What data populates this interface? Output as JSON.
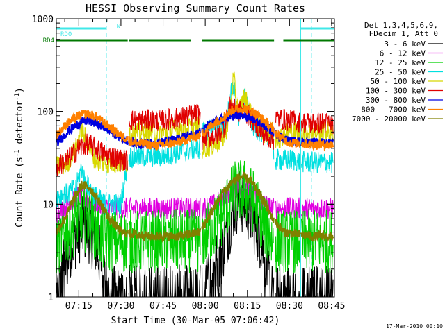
{
  "chart_data": {
    "type": "line",
    "title": "HESSI Observing Summary Count Rates",
    "xlabel": "Start Time (30-Mar-05 07:06:42)",
    "ylabel_main": "Count Rate (s",
    "ylabel_sup1": "-1",
    "ylabel_mid": " detector",
    "ylabel_sup2": "-1",
    "ylabel_end": ")",
    "y_log": true,
    "ylim": [
      1,
      1000
    ],
    "xlim": [
      427,
      526
    ],
    "ytick_labels": [
      "1",
      "10",
      "100",
      "1000"
    ],
    "xticks": [
      {
        "m": 435,
        "label": "07:15"
      },
      {
        "m": 450,
        "label": "07:30"
      },
      {
        "m": 465,
        "label": "07:45"
      },
      {
        "m": 480,
        "label": "08:00"
      },
      {
        "m": 495,
        "label": "08:15"
      },
      {
        "m": 510,
        "label": "08:30"
      },
      {
        "m": 525,
        "label": "08:45"
      }
    ],
    "legend_header": [
      "Det 1,3,4,5,6,9,",
      "FDecim 1, Att 0"
    ],
    "legend_position": "right",
    "night_boundaries": [
      444.8,
      517.8
    ],
    "saa_boundaries": [
      427,
      514
    ],
    "flags": [
      {
        "label": "RD0",
        "color": "#40e8e8",
        "segments": [
          [
            427,
            444.8
          ],
          [
            513.8,
            526
          ]
        ],
        "n_at": 446.5
      },
      {
        "label": "RD4",
        "color": "#007800",
        "segments": [
          [
            427,
            452.4
          ],
          [
            452.8,
            475
          ],
          [
            478.8,
            504.5
          ],
          [
            507.8,
            526
          ]
        ]
      }
    ],
    "gaps": [
      [
        452.4,
        452.8
      ],
      [
        478.3,
        478.8
      ],
      [
        504.5,
        505
      ],
      [
        513.8,
        514.2
      ]
    ],
    "series": [
      {
        "name": "3 - 6 keV",
        "color": "#000000",
        "points": [
          [
            427,
            1
          ],
          [
            432,
            3.5
          ],
          [
            436,
            5.5
          ],
          [
            439,
            5
          ],
          [
            443,
            2.5
          ],
          [
            446,
            1
          ],
          [
            452,
            1
          ],
          [
            465,
            1
          ],
          [
            478,
            1
          ],
          [
            486,
            3
          ],
          [
            490,
            9
          ],
          [
            492,
            11
          ],
          [
            494,
            10
          ],
          [
            496,
            8
          ],
          [
            500,
            4
          ],
          [
            504,
            1
          ],
          [
            510,
            1
          ],
          [
            518,
            1
          ]
        ]
      },
      {
        "name": "6 - 12 keV",
        "color": "#e000e0",
        "points": [
          [
            427,
            8
          ],
          [
            431,
            10
          ],
          [
            435,
            12.5
          ],
          [
            439,
            11
          ],
          [
            444,
            9
          ],
          [
            452,
            9
          ],
          [
            465,
            9
          ],
          [
            478,
            9
          ],
          [
            484,
            10
          ],
          [
            488,
            13
          ],
          [
            491,
            15
          ],
          [
            494,
            15
          ],
          [
            497,
            13
          ],
          [
            501,
            10
          ],
          [
            504,
            9
          ],
          [
            510,
            9
          ],
          [
            518,
            9
          ]
        ]
      },
      {
        "name": "12 - 25 keV",
        "color": "#00d000",
        "points": [
          [
            427,
            3.5
          ],
          [
            431,
            5
          ],
          [
            435,
            7
          ],
          [
            439,
            6.5
          ],
          [
            444,
            4
          ],
          [
            452,
            4
          ],
          [
            465,
            4
          ],
          [
            478,
            4
          ],
          [
            484,
            6
          ],
          [
            488,
            10
          ],
          [
            491,
            14
          ],
          [
            494,
            14
          ],
          [
            497,
            11
          ],
          [
            501,
            6
          ],
          [
            504,
            4
          ],
          [
            510,
            4
          ],
          [
            518,
            4
          ]
        ]
      },
      {
        "name": "25 - 50 keV",
        "color": "#00e0e0",
        "points": [
          [
            427,
            12
          ],
          [
            431,
            13
          ],
          [
            434,
            15
          ],
          [
            436,
            25
          ],
          [
            437,
            18
          ],
          [
            440,
            13
          ],
          [
            444,
            10
          ],
          [
            450,
            10
          ],
          [
            452.6,
            32
          ],
          [
            465,
            33
          ],
          [
            477,
            40
          ],
          [
            478.2,
            40
          ],
          [
            479,
            60
          ],
          [
            484,
            65
          ],
          [
            487,
            70
          ],
          [
            490,
            200
          ],
          [
            492,
            80
          ],
          [
            494,
            140
          ],
          [
            497,
            70
          ],
          [
            500,
            60
          ],
          [
            504,
            55
          ],
          [
            504.6,
            30
          ],
          [
            510,
            30
          ],
          [
            518,
            28
          ]
        ]
      },
      {
        "name": "50 - 100 keV",
        "color": "#d8d800",
        "points": [
          [
            427,
            25
          ],
          [
            431,
            28
          ],
          [
            434,
            40
          ],
          [
            436,
            65
          ],
          [
            438,
            45
          ],
          [
            441,
            30
          ],
          [
            444,
            28
          ],
          [
            450,
            28
          ],
          [
            452.4,
            28
          ],
          [
            452.8,
            60
          ],
          [
            465,
            60
          ],
          [
            475,
            68
          ],
          [
            478,
            70
          ],
          [
            478.8,
            40
          ],
          [
            484,
            45
          ],
          [
            487,
            55
          ],
          [
            489,
            110
          ],
          [
            490,
            230
          ],
          [
            492,
            100
          ],
          [
            494,
            145
          ],
          [
            497,
            85
          ],
          [
            501,
            60
          ],
          [
            504.5,
            60
          ],
          [
            505,
            50
          ],
          [
            510,
            60
          ],
          [
            518,
            60
          ]
        ]
      },
      {
        "name": "100 - 300 keV",
        "color": "#e00000",
        "points": [
          [
            427,
            25
          ],
          [
            431,
            30
          ],
          [
            435,
            40
          ],
          [
            438,
            45
          ],
          [
            441,
            40
          ],
          [
            444,
            35
          ],
          [
            450,
            30
          ],
          [
            452.4,
            30
          ],
          [
            452.8,
            80
          ],
          [
            465,
            80
          ],
          [
            475,
            90
          ],
          [
            478,
            95
          ],
          [
            478.8,
            50
          ],
          [
            484,
            55
          ],
          [
            487,
            70
          ],
          [
            489,
            120
          ],
          [
            491,
            100
          ],
          [
            494,
            100
          ],
          [
            497,
            80
          ],
          [
            501,
            55
          ],
          [
            504.5,
            50
          ],
          [
            505,
            85
          ],
          [
            510,
            80
          ],
          [
            518,
            75
          ]
        ]
      },
      {
        "name": "300 - 800 keV",
        "color": "#0000e0",
        "points": [
          [
            427,
            45
          ],
          [
            431,
            60
          ],
          [
            435,
            75
          ],
          [
            438,
            80
          ],
          [
            441,
            75
          ],
          [
            445,
            65
          ],
          [
            450,
            52
          ],
          [
            455,
            45
          ],
          [
            462,
            45
          ],
          [
            470,
            50
          ],
          [
            478,
            60
          ],
          [
            482,
            72
          ],
          [
            486,
            82
          ],
          [
            490,
            90
          ],
          [
            494,
            88
          ],
          [
            498,
            80
          ],
          [
            502,
            68
          ],
          [
            506,
            55
          ],
          [
            510,
            48
          ],
          [
            518,
            46
          ]
        ]
      },
      {
        "name": "800 - 7000 keV",
        "color": "#ff8000",
        "points": [
          [
            427,
            55
          ],
          [
            431,
            75
          ],
          [
            435,
            90
          ],
          [
            438,
            95
          ],
          [
            441,
            88
          ],
          [
            445,
            72
          ],
          [
            450,
            55
          ],
          [
            455,
            46
          ],
          [
            462,
            43
          ],
          [
            470,
            46
          ],
          [
            478,
            55
          ],
          [
            482,
            70
          ],
          [
            486,
            85
          ],
          [
            490,
            105
          ],
          [
            494,
            108
          ],
          [
            498,
            95
          ],
          [
            502,
            75
          ],
          [
            506,
            55
          ],
          [
            510,
            46
          ],
          [
            518,
            44
          ]
        ]
      },
      {
        "name": "7000 - 20000 keV",
        "color": "#808000",
        "points": [
          [
            427,
            5
          ],
          [
            430,
            7
          ],
          [
            433,
            11
          ],
          [
            436,
            16
          ],
          [
            439,
            15
          ],
          [
            442,
            11
          ],
          [
            446,
            7
          ],
          [
            450,
            5
          ],
          [
            460,
            4.5
          ],
          [
            470,
            4.5
          ],
          [
            478,
            5
          ],
          [
            482,
            8
          ],
          [
            486,
            13
          ],
          [
            490,
            18
          ],
          [
            493,
            20
          ],
          [
            496,
            18
          ],
          [
            500,
            12
          ],
          [
            504,
            7
          ],
          [
            508,
            5
          ],
          [
            518,
            4.5
          ]
        ]
      }
    ],
    "footer": "17-Mar-2010 00:10"
  }
}
